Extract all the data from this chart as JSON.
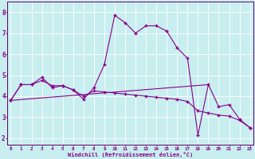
{
  "xlabel": "Windchill (Refroidissement éolien,°C)",
  "bg_color": "#c8eef0",
  "line_color": "#880088",
  "xlim": [
    -0.3,
    23.3
  ],
  "ylim": [
    1.7,
    8.5
  ],
  "yticks": [
    2,
    3,
    4,
    5,
    6,
    7,
    8
  ],
  "xticks": [
    0,
    1,
    2,
    3,
    4,
    5,
    6,
    7,
    8,
    9,
    10,
    11,
    12,
    13,
    14,
    15,
    16,
    17,
    18,
    19,
    20,
    21,
    22,
    23
  ],
  "series1_x": [
    0,
    1,
    2,
    3,
    4,
    5,
    6,
    7,
    8,
    9,
    10,
    11,
    12,
    13,
    14,
    15,
    16,
    17,
    18,
    19,
    20,
    21,
    22,
    23
  ],
  "series1_y": [
    3.8,
    4.55,
    4.55,
    4.9,
    4.4,
    4.5,
    4.3,
    3.85,
    4.4,
    5.5,
    7.85,
    7.5,
    7.0,
    7.35,
    7.35,
    7.1,
    6.3,
    5.8,
    2.15,
    4.55,
    3.5,
    3.6,
    2.9,
    2.5
  ],
  "series2_x": [
    0,
    1,
    2,
    3,
    4,
    5,
    6,
    7,
    8,
    9,
    10,
    11,
    12,
    13,
    14,
    15,
    16,
    17,
    18,
    19,
    20,
    21,
    22,
    23
  ],
  "series2_y": [
    3.8,
    4.55,
    4.55,
    4.75,
    4.5,
    4.5,
    4.3,
    4.0,
    4.25,
    4.2,
    4.15,
    4.1,
    4.05,
    4.0,
    3.95,
    3.9,
    3.85,
    3.75,
    3.3,
    3.2,
    3.1,
    3.05,
    2.85,
    2.5
  ],
  "series3_x": [
    0,
    19
  ],
  "series3_y": [
    3.8,
    4.55
  ],
  "grid_color": "#ffffff",
  "spine_color": "#660066"
}
